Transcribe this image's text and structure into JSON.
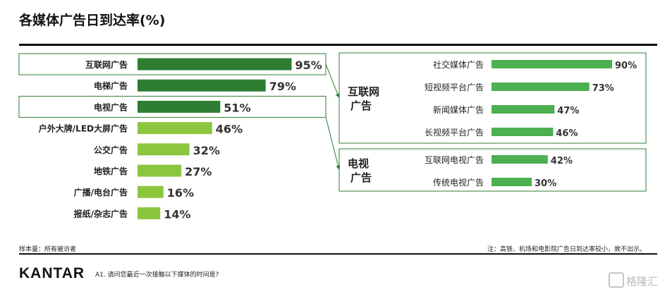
{
  "title": "各媒体广告日到达率(%)",
  "footer": {
    "sample": "样本量：所有被访者",
    "note": "注：高铁、机场和电影院广告日到达率较小，故不出示。",
    "brand": "KANTAR",
    "question": "A1. 请问您最近一次接触以下媒体的时间是?",
    "watermark": "格隆汇"
  },
  "colors": {
    "dark_green": "#2e7d32",
    "light_green": "#8cc63f",
    "mid_green": "#4caf50",
    "frame": "#2e7d32"
  },
  "chart_data": [
    {
      "type": "bar",
      "orientation": "horizontal",
      "categories": [
        "互联网广告",
        "电梯广告",
        "电视广告",
        "户外大牌/LED大屏广告",
        "公交广告",
        "地铁广告",
        "广播/电台广告",
        "报纸/杂志广告"
      ],
      "values": [
        95,
        79,
        51,
        46,
        32,
        27,
        16,
        14
      ],
      "value_labels": [
        "95%",
        "79%",
        "51%",
        "46%",
        "32%",
        "27%",
        "16%",
        "14%"
      ],
      "highlighted": [
        true,
        true,
        true,
        false,
        false,
        false,
        false,
        false
      ],
      "boxed": [
        "互联网广告",
        "电视广告"
      ]
    },
    {
      "type": "bar",
      "orientation": "horizontal",
      "group_label": "互联网广告",
      "categories": [
        "社交媒体广告",
        "短视频平台广告",
        "新闻媒体广告",
        "长视频平台广告"
      ],
      "values": [
        90,
        73,
        47,
        46
      ],
      "value_labels": [
        "90%",
        "73%",
        "47%",
        "46%"
      ]
    },
    {
      "type": "bar",
      "orientation": "horizontal",
      "group_label": "电视广告",
      "categories": [
        "互联网电视广告",
        "传统电视广告"
      ],
      "values": [
        42,
        30
      ],
      "value_labels": [
        "42%",
        "30%"
      ]
    }
  ]
}
